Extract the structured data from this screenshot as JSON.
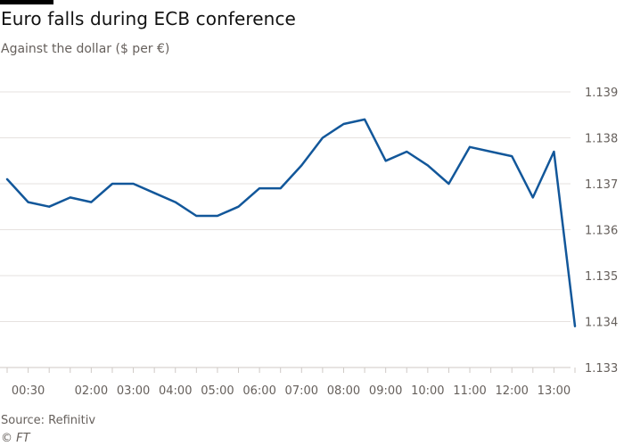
{
  "header": {
    "title": "Euro falls during ECB conference",
    "subtitle": "Against the dollar ($ per €)"
  },
  "footer": {
    "source": "Source: Refinitiv",
    "credit": "© FT"
  },
  "colors": {
    "line": "#12579a",
    "grid": "#e6e2df",
    "axis": "#cfcac6",
    "text": "#66605c",
    "title": "#121212"
  },
  "chart_data": {
    "type": "line",
    "title": "Euro falls during ECB conference",
    "subtitle": "Against the dollar ($ per €)",
    "xlabel": "",
    "ylabel": "",
    "ylim": [
      1.133,
      1.139
    ],
    "yticks": [
      1.133,
      1.134,
      1.135,
      1.136,
      1.137,
      1.138,
      1.139
    ],
    "ytick_labels": [
      "1.133",
      "1.134",
      "1.135",
      "1.136",
      "1.137",
      "1.138",
      "1.139"
    ],
    "y_axis_position": "right",
    "grid": true,
    "xtick_labels": [
      "00:30",
      "02:00",
      "03:00",
      "04:00",
      "05:00",
      "06:00",
      "07:00",
      "08:00",
      "09:00",
      "10:00",
      "11:00",
      "12:00",
      "13:00"
    ],
    "xtick_hours": [
      0.5,
      2,
      3,
      4,
      5,
      6,
      7,
      8,
      9,
      10,
      11,
      12,
      13
    ],
    "x_hours": [
      0,
      0.5,
      1,
      1.5,
      2,
      2.5,
      3,
      3.5,
      4,
      4.5,
      5,
      5.5,
      6,
      6.5,
      7,
      7.5,
      8,
      8.5,
      9,
      9.5,
      10,
      10.5,
      11,
      11.5,
      12,
      12.5,
      13,
      13.5,
      14
    ],
    "x": [
      "00:00",
      "00:30",
      "01:00",
      "01:30",
      "02:00",
      "02:30",
      "03:00",
      "03:30",
      "04:00",
      "04:30",
      "05:00",
      "05:30",
      "06:00",
      "06:30",
      "07:00",
      "07:30",
      "08:00",
      "08:30",
      "09:00",
      "09:30",
      "10:00",
      "10:30",
      "11:00",
      "11:30",
      "12:00",
      "12:30",
      "13:00",
      "13:30",
      "14:00"
    ],
    "series": [
      {
        "values": [
          1.1371,
          1.1366,
          1.1365,
          1.1367,
          1.1366,
          1.137,
          1.137,
          1.1368,
          1.1366,
          1.1363,
          1.1363,
          1.1365,
          1.1369,
          1.1369,
          1.1374,
          1.138,
          1.1383,
          1.1384,
          1.1375,
          1.1377,
          1.1374,
          1.137,
          1.1378,
          1.1377,
          1.1376,
          1.1367,
          1.1377,
          1.1339,
          null
        ]
      }
    ]
  }
}
